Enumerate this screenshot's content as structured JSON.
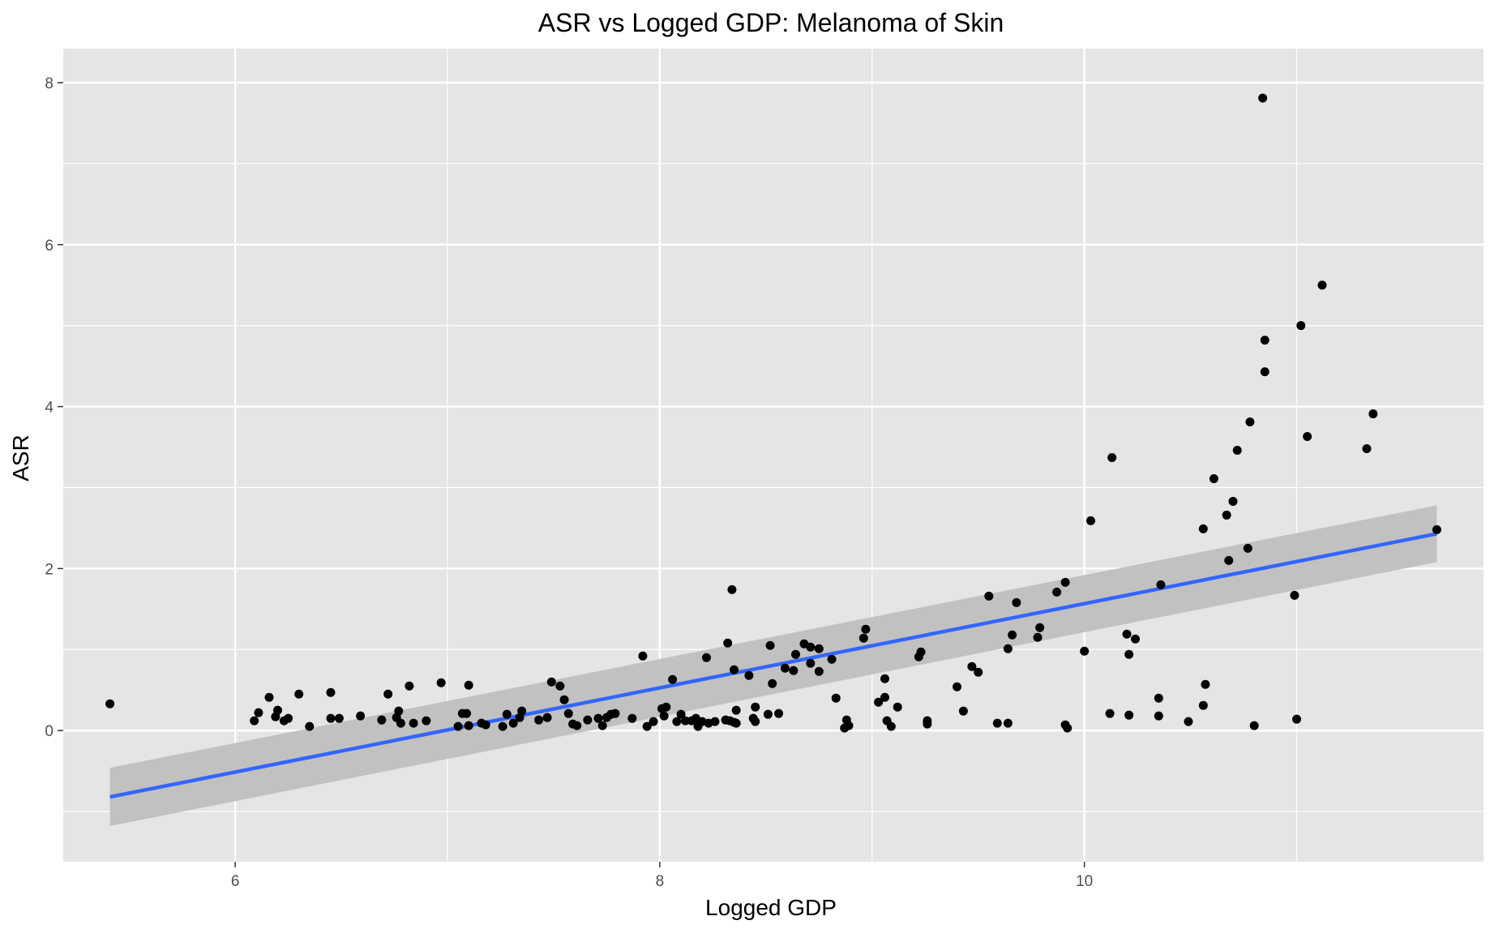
{
  "colors": {
    "panel": "#e5e5e5",
    "grid_major": "#ffffff",
    "point": "#000000",
    "fit_line": "#3366ff",
    "ribbon": "#bdbdbd",
    "tick": "#333333"
  },
  "chart_data": {
    "type": "scatter",
    "title": "ASR vs Logged GDP: Melanoma of Skin",
    "xlabel": "Logged GDP",
    "ylabel": "ASR",
    "xlim": [
      5.19,
      11.88
    ],
    "ylim": [
      -1.62,
      8.42
    ],
    "x_ticks": [
      6,
      8,
      10
    ],
    "x_tick_labels": [
      "6",
      "8",
      "10"
    ],
    "y_ticks": [
      0,
      2,
      4,
      6,
      8
    ],
    "y_tick_labels": [
      "0",
      "2",
      "4",
      "6",
      "8"
    ],
    "grid": true,
    "legend": "none",
    "points": [
      [
        5.41,
        0.33
      ],
      [
        6.09,
        0.12
      ],
      [
        6.11,
        0.22
      ],
      [
        6.16,
        0.41
      ],
      [
        6.19,
        0.17
      ],
      [
        6.2,
        0.25
      ],
      [
        6.23,
        0.12
      ],
      [
        6.25,
        0.15
      ],
      [
        6.3,
        0.45
      ],
      [
        6.35,
        0.05
      ],
      [
        6.45,
        0.47
      ],
      [
        6.45,
        0.15
      ],
      [
        6.49,
        0.15
      ],
      [
        6.59,
        0.18
      ],
      [
        6.69,
        0.13
      ],
      [
        6.72,
        0.45
      ],
      [
        6.76,
        0.16
      ],
      [
        6.77,
        0.24
      ],
      [
        6.78,
        0.09
      ],
      [
        6.82,
        0.55
      ],
      [
        6.84,
        0.09
      ],
      [
        6.9,
        0.12
      ],
      [
        6.97,
        0.59
      ],
      [
        7.05,
        0.05
      ],
      [
        7.07,
        0.21
      ],
      [
        7.09,
        0.21
      ],
      [
        7.1,
        0.56
      ],
      [
        7.1,
        0.06
      ],
      [
        7.16,
        0.09
      ],
      [
        7.18,
        0.07
      ],
      [
        7.26,
        0.05
      ],
      [
        7.28,
        0.2
      ],
      [
        7.31,
        0.09
      ],
      [
        7.34,
        0.16
      ],
      [
        7.35,
        0.24
      ],
      [
        7.43,
        0.13
      ],
      [
        7.47,
        0.16
      ],
      [
        7.49,
        0.6
      ],
      [
        7.53,
        0.55
      ],
      [
        7.55,
        0.38
      ],
      [
        7.57,
        0.21
      ],
      [
        7.59,
        0.08
      ],
      [
        7.61,
        0.06
      ],
      [
        7.66,
        0.13
      ],
      [
        7.71,
        0.15
      ],
      [
        7.73,
        0.06
      ],
      [
        7.75,
        0.16
      ],
      [
        7.77,
        0.2
      ],
      [
        7.79,
        0.21
      ],
      [
        7.87,
        0.15
      ],
      [
        7.92,
        0.92
      ],
      [
        7.94,
        0.05
      ],
      [
        7.97,
        0.11
      ],
      [
        8.01,
        0.27
      ],
      [
        8.02,
        0.18
      ],
      [
        8.03,
        0.29
      ],
      [
        8.06,
        0.63
      ],
      [
        8.08,
        0.11
      ],
      [
        8.1,
        0.2
      ],
      [
        8.12,
        0.12
      ],
      [
        8.15,
        0.12
      ],
      [
        8.17,
        0.15
      ],
      [
        8.18,
        0.05
      ],
      [
        8.2,
        0.11
      ],
      [
        8.22,
        0.9
      ],
      [
        8.23,
        0.09
      ],
      [
        8.26,
        0.11
      ],
      [
        8.31,
        0.13
      ],
      [
        8.32,
        1.08
      ],
      [
        8.33,
        0.12
      ],
      [
        8.34,
        1.74
      ],
      [
        8.35,
        0.1
      ],
      [
        8.35,
        0.75
      ],
      [
        8.36,
        0.09
      ],
      [
        8.36,
        0.25
      ],
      [
        8.42,
        0.68
      ],
      [
        8.44,
        0.15
      ],
      [
        8.45,
        0.11
      ],
      [
        8.45,
        0.29
      ],
      [
        8.51,
        0.2
      ],
      [
        8.52,
        1.05
      ],
      [
        8.53,
        0.58
      ],
      [
        8.56,
        0.21
      ],
      [
        8.59,
        0.77
      ],
      [
        8.63,
        0.74
      ],
      [
        8.64,
        0.94
      ],
      [
        8.68,
        1.07
      ],
      [
        8.71,
        1.03
      ],
      [
        8.71,
        0.83
      ],
      [
        8.75,
        1.01
      ],
      [
        8.75,
        0.73
      ],
      [
        8.81,
        0.88
      ],
      [
        8.83,
        0.4
      ],
      [
        8.87,
        0.03
      ],
      [
        8.88,
        0.13
      ],
      [
        8.89,
        0.06
      ],
      [
        8.96,
        1.14
      ],
      [
        8.97,
        1.25
      ],
      [
        9.03,
        0.35
      ],
      [
        9.06,
        0.41
      ],
      [
        9.06,
        0.64
      ],
      [
        9.07,
        0.12
      ],
      [
        9.09,
        0.05
      ],
      [
        9.12,
        0.29
      ],
      [
        9.22,
        0.91
      ],
      [
        9.23,
        0.97
      ],
      [
        9.26,
        0.08
      ],
      [
        9.26,
        0.12
      ],
      [
        9.4,
        0.54
      ],
      [
        9.43,
        0.24
      ],
      [
        9.47,
        0.79
      ],
      [
        9.5,
        0.72
      ],
      [
        9.55,
        1.66
      ],
      [
        9.59,
        0.09
      ],
      [
        9.64,
        0.09
      ],
      [
        9.64,
        1.01
      ],
      [
        9.66,
        1.18
      ],
      [
        9.68,
        1.58
      ],
      [
        9.78,
        1.15
      ],
      [
        9.79,
        1.27
      ],
      [
        9.87,
        1.71
      ],
      [
        9.91,
        1.83
      ],
      [
        9.91,
        0.07
      ],
      [
        9.92,
        0.03
      ],
      [
        10.0,
        0.98
      ],
      [
        10.03,
        2.59
      ],
      [
        10.12,
        0.21
      ],
      [
        10.13,
        3.37
      ],
      [
        10.2,
        1.19
      ],
      [
        10.21,
        0.19
      ],
      [
        10.21,
        0.94
      ],
      [
        10.24,
        1.13
      ],
      [
        10.35,
        0.4
      ],
      [
        10.35,
        0.18
      ],
      [
        10.36,
        1.8
      ],
      [
        10.49,
        0.11
      ],
      [
        10.56,
        2.49
      ],
      [
        10.56,
        0.31
      ],
      [
        10.57,
        0.57
      ],
      [
        10.61,
        3.11
      ],
      [
        10.67,
        2.66
      ],
      [
        10.68,
        2.1
      ],
      [
        10.7,
        2.83
      ],
      [
        10.72,
        3.46
      ],
      [
        10.77,
        2.25
      ],
      [
        10.78,
        3.81
      ],
      [
        10.8,
        0.06
      ],
      [
        10.84,
        7.81
      ],
      [
        10.85,
        4.43
      ],
      [
        10.85,
        4.82
      ],
      [
        10.99,
        1.67
      ],
      [
        11.0,
        0.14
      ],
      [
        11.02,
        5.0
      ],
      [
        11.05,
        3.63
      ],
      [
        11.12,
        5.5
      ],
      [
        11.33,
        3.48
      ],
      [
        11.36,
        3.91
      ],
      [
        11.66,
        2.48
      ]
    ],
    "fit_line": {
      "x": [
        5.41,
        11.66
      ],
      "y": [
        -0.82,
        2.43
      ]
    },
    "confidence_band": {
      "x": [
        5.41,
        11.66
      ],
      "lower": [
        -1.18,
        2.08
      ],
      "upper": [
        -0.46,
        2.78
      ]
    }
  }
}
